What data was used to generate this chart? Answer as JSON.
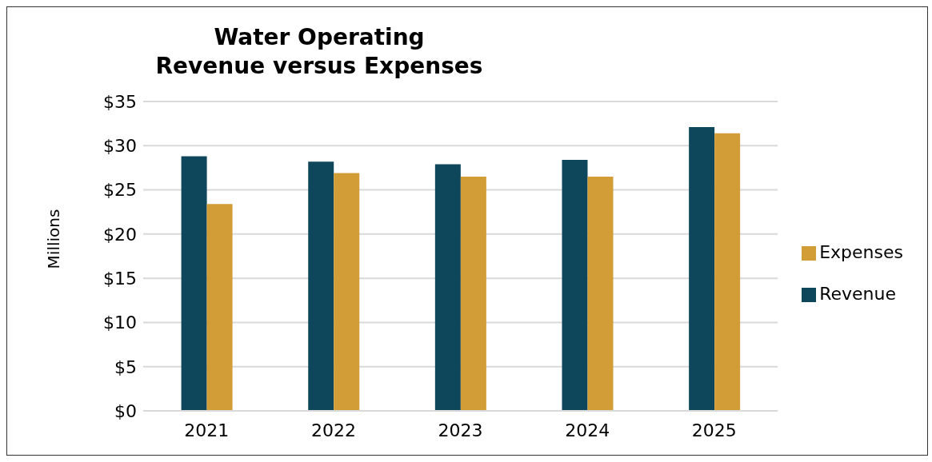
{
  "chart_data": {
    "type": "bar",
    "title": "Water Operating\nRevenue versus Expenses",
    "ylabel": "Millions",
    "categories": [
      "2021",
      "2022",
      "2023",
      "2024",
      "2025"
    ],
    "series": [
      {
        "name": "Revenue",
        "color": "#0e475c",
        "values": [
          28.8,
          28.2,
          27.9,
          28.4,
          32.1
        ]
      },
      {
        "name": "Expenses",
        "color": "#d29d36",
        "values": [
          23.4,
          26.9,
          26.5,
          26.5,
          31.4
        ]
      }
    ],
    "ylim": [
      0,
      35
    ],
    "yticks": [
      {
        "value": 0,
        "label": "$0"
      },
      {
        "value": 5,
        "label": "$5"
      },
      {
        "value": 10,
        "label": "$10"
      },
      {
        "value": 15,
        "label": "$15"
      },
      {
        "value": 20,
        "label": "$20"
      },
      {
        "value": 25,
        "label": "$25"
      },
      {
        "value": 30,
        "label": "$30"
      },
      {
        "value": 35,
        "label": "$35"
      }
    ],
    "grid": "y",
    "legend": "right"
  }
}
